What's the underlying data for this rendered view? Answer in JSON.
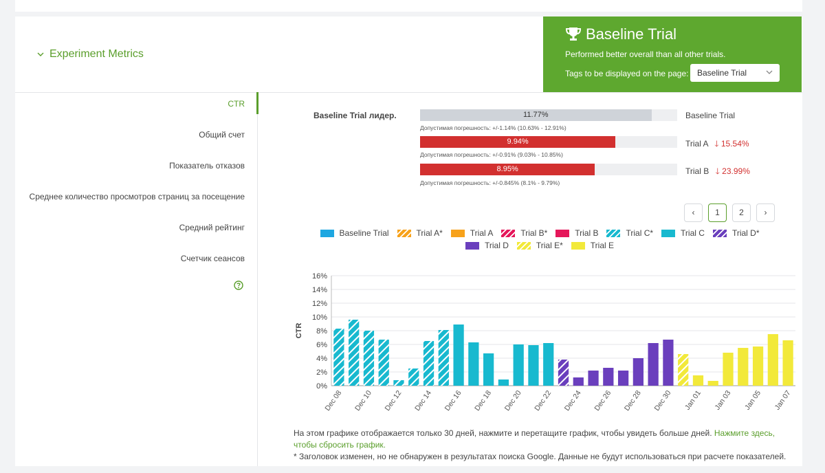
{
  "header": {
    "section_title": "Experiment Metrics",
    "winner_title": "Baseline Trial",
    "winner_subtitle": "Performed better overall than all other trials.",
    "tags_label": "Tags to be displayed on the page:",
    "tags_selected": "Baseline Trial"
  },
  "nav": {
    "items": [
      {
        "label": "CTR",
        "active": true
      },
      {
        "label": "Общий счет"
      },
      {
        "label": "Показатель отказов"
      },
      {
        "label": "Среднее количество просмотров страниц за посещение"
      },
      {
        "label": "Средний рейтинг"
      },
      {
        "label": "Счетчик сеансов"
      }
    ],
    "help_icon": "help-circle-icon"
  },
  "summary": {
    "leader_text": "Baseline Trial лидер.",
    "rows": [
      {
        "value": "11.77%",
        "fill": 0.9,
        "tolerance": "Допустимая погрешность: +/-1.14% (10.63% - 12.91%)",
        "name": "Baseline Trial",
        "change": ""
      },
      {
        "value": "9.94%",
        "fill": 0.76,
        "tolerance": "Допустимая погрешность: +/-0.91% (9.03% - 10.85%)",
        "name": "Trial A",
        "change": "15.54%"
      },
      {
        "value": "8.95%",
        "fill": 0.68,
        "tolerance": "Допустимая погрешность: +/-0.845% (8.1% - 9.79%)",
        "name": "Trial B",
        "change": "23.99%"
      }
    ]
  },
  "pagination": {
    "prev": "‹",
    "pages": [
      "1",
      "2"
    ],
    "next": "›",
    "current": "1"
  },
  "chart_data": {
    "type": "bar",
    "ylabel": "CTR",
    "ylim": [
      0,
      16
    ],
    "yticks": [
      "0%",
      "2%",
      "4%",
      "6%",
      "8%",
      "10%",
      "12%",
      "14%",
      "16%"
    ],
    "legend": [
      {
        "name": "Baseline Trial",
        "color": "#1ea7e1",
        "hatched": false
      },
      {
        "name": "Trial A*",
        "color": "#f7a21b",
        "hatched": true
      },
      {
        "name": "Trial A",
        "color": "#f7a21b",
        "hatched": false
      },
      {
        "name": "Trial B*",
        "color": "#e5175a",
        "hatched": true
      },
      {
        "name": "Trial B",
        "color": "#e5175a",
        "hatched": false
      },
      {
        "name": "Trial C*",
        "color": "#18b9cf",
        "hatched": true
      },
      {
        "name": "Trial C",
        "color": "#18b9cf",
        "hatched": false
      },
      {
        "name": "Trial D*",
        "color": "#6a3fbd",
        "hatched": true
      },
      {
        "name": "Trial D",
        "color": "#6a3fbd",
        "hatched": false
      },
      {
        "name": "Trial E*",
        "color": "#f2e93a",
        "hatched": true
      },
      {
        "name": "Trial E",
        "color": "#f2e93a",
        "hatched": false
      }
    ],
    "xtick_labels": [
      "Dec 08",
      "Dec 10",
      "Dec 12",
      "Dec 14",
      "Dec 16",
      "Dec 18",
      "Dec 20",
      "Dec 22",
      "Dec 24",
      "Dec 26",
      "Dec 28",
      "Dec 30",
      "Jan 01",
      "Jan 03",
      "Jan 05",
      "Jan 07"
    ],
    "bars": [
      {
        "series": "Trial C*",
        "value": 8.3
      },
      {
        "series": "Trial C*",
        "value": 9.6
      },
      {
        "series": "Trial C*",
        "value": 8.0
      },
      {
        "series": "Trial C*",
        "value": 6.7
      },
      {
        "series": "Trial C*",
        "value": 0.8
      },
      {
        "series": "Trial C*",
        "value": 2.5
      },
      {
        "series": "Trial C*",
        "value": 6.5
      },
      {
        "series": "Trial C*",
        "value": 8.1
      },
      {
        "series": "Trial C",
        "value": 8.9
      },
      {
        "series": "Trial C",
        "value": 6.3
      },
      {
        "series": "Trial C",
        "value": 4.7
      },
      {
        "series": "Trial C",
        "value": 0.9
      },
      {
        "series": "Trial C",
        "value": 6.0
      },
      {
        "series": "Trial C",
        "value": 5.9
      },
      {
        "series": "Trial C",
        "value": 6.2
      },
      {
        "series": "Trial D*",
        "value": 3.8
      },
      {
        "series": "Trial D",
        "value": 1.2
      },
      {
        "series": "Trial D",
        "value": 2.2
      },
      {
        "series": "Trial D",
        "value": 2.6
      },
      {
        "series": "Trial D",
        "value": 2.2
      },
      {
        "series": "Trial D",
        "value": 4.0
      },
      {
        "series": "Trial D",
        "value": 6.2
      },
      {
        "series": "Trial D",
        "value": 6.7
      },
      {
        "series": "Trial E*",
        "value": 4.6
      },
      {
        "series": "Trial E",
        "value": 1.5
      },
      {
        "series": "Trial E",
        "value": 0.7
      },
      {
        "series": "Trial E",
        "value": 4.8
      },
      {
        "series": "Trial E",
        "value": 5.5
      },
      {
        "series": "Trial E",
        "value": 5.7
      },
      {
        "series": "Trial E",
        "value": 7.5
      },
      {
        "series": "Trial E",
        "value": 6.6
      }
    ],
    "grid": true,
    "legend_position": "top"
  },
  "footer": {
    "note": "На этом графике отображается только 30 дней, нажмите и перетащите график, чтобы увидеть больше дней.",
    "reset_link": "Нажмите здесь, чтобы сбросить график.",
    "disclaimer": "* Заголовок изменен, но не обнаружен в результатах поиска Google. Данные не будут использоваться при расчете показателей."
  }
}
